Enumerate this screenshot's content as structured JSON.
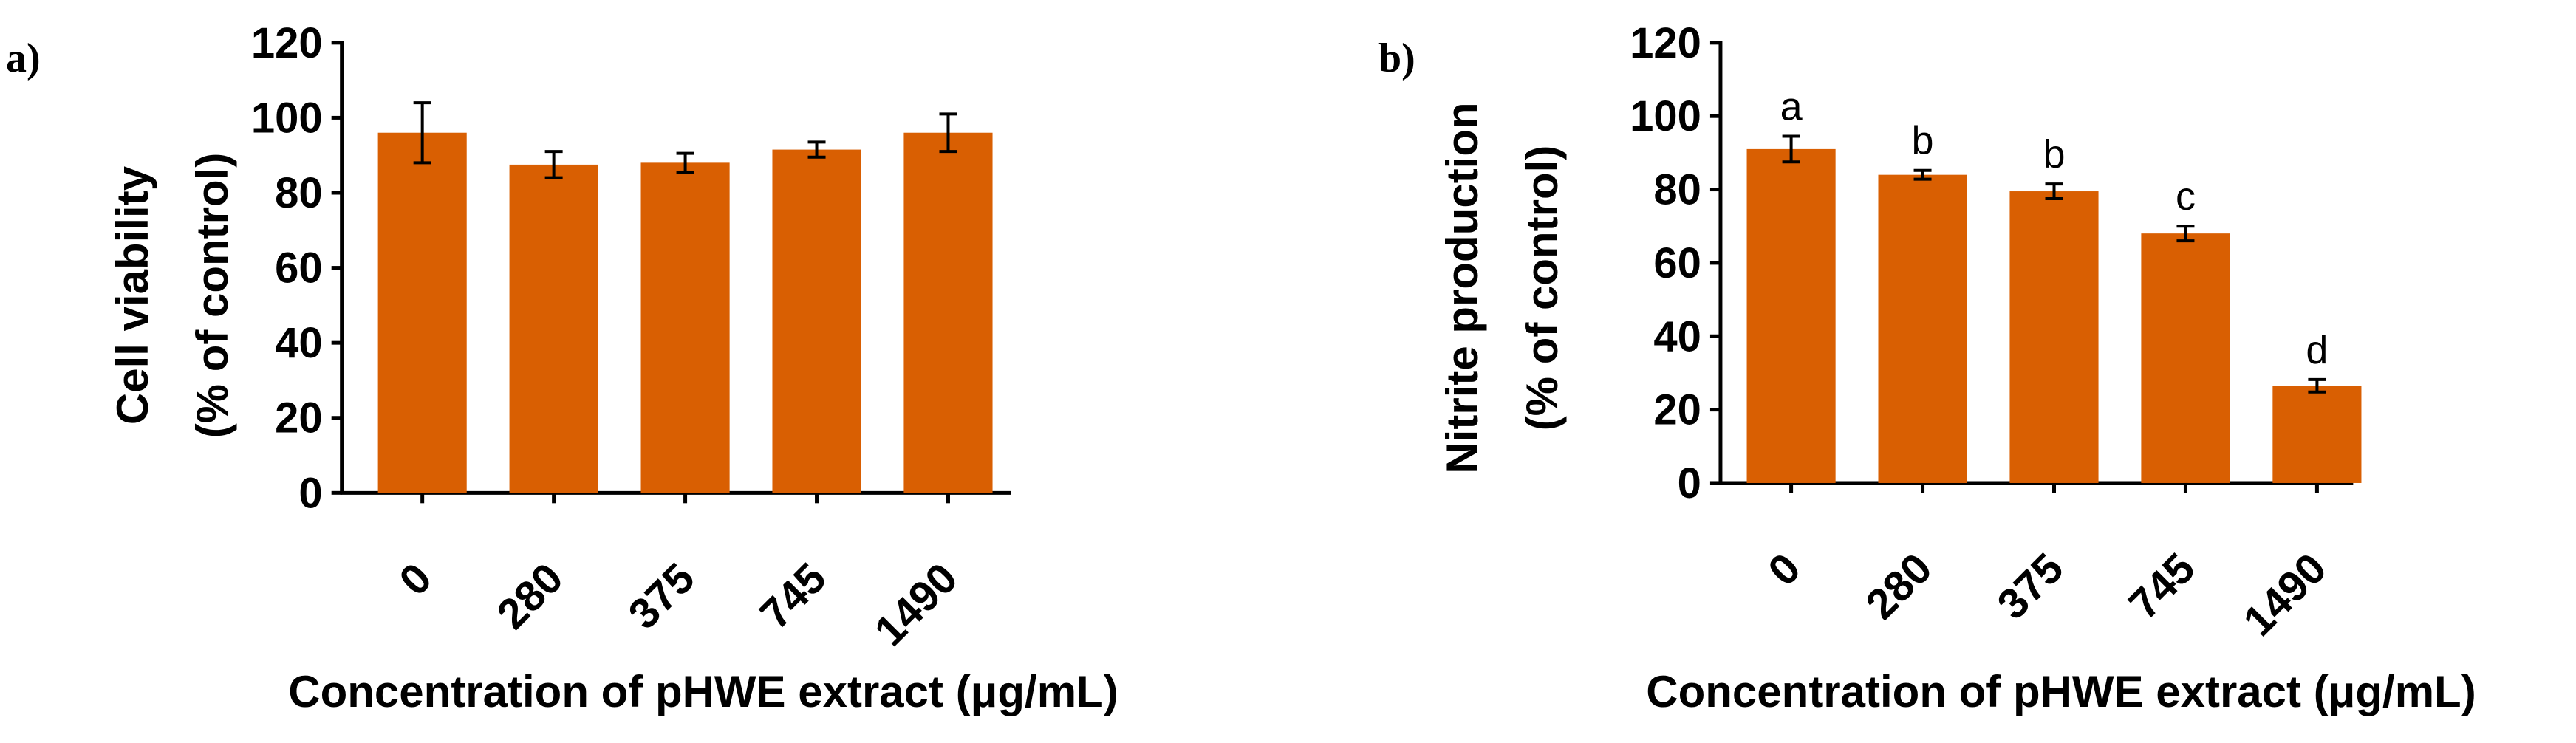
{
  "chart_data": [
    {
      "type": "bar",
      "panel_label": "a)",
      "categories": [
        "0",
        "280",
        "375",
        "745",
        "1490"
      ],
      "values": [
        96,
        87.5,
        88,
        91.5,
        96
      ],
      "errors": [
        8,
        3.5,
        2.5,
        2,
        5
      ],
      "annotations": [],
      "ylim": [
        0,
        120
      ],
      "yticks": [
        0,
        20,
        40,
        60,
        80,
        100,
        120
      ],
      "ylabel_line1": "Cell viability",
      "ylabel_line2": "(% of control)",
      "xlabel": "Concentration of pHWE extract (μg/mL)",
      "bar_color": "#D95F02",
      "grid": false
    },
    {
      "type": "bar",
      "panel_label": "b)",
      "categories": [
        "0",
        "280",
        "375",
        "745",
        "1490"
      ],
      "values": [
        91,
        84,
        79.5,
        68,
        26.5
      ],
      "errors": [
        3.5,
        1.2,
        2,
        2,
        1.7
      ],
      "annotations": [
        "a",
        "b",
        "b",
        "c",
        "d"
      ],
      "ylim": [
        0,
        120
      ],
      "yticks": [
        0,
        20,
        40,
        60,
        80,
        100,
        120
      ],
      "ylabel_line1": "Nitrite production",
      "ylabel_line2": "(% of control)",
      "xlabel": "Concentration of pHWE extract (μg/mL)",
      "bar_color": "#D95F02",
      "grid": false
    }
  ]
}
